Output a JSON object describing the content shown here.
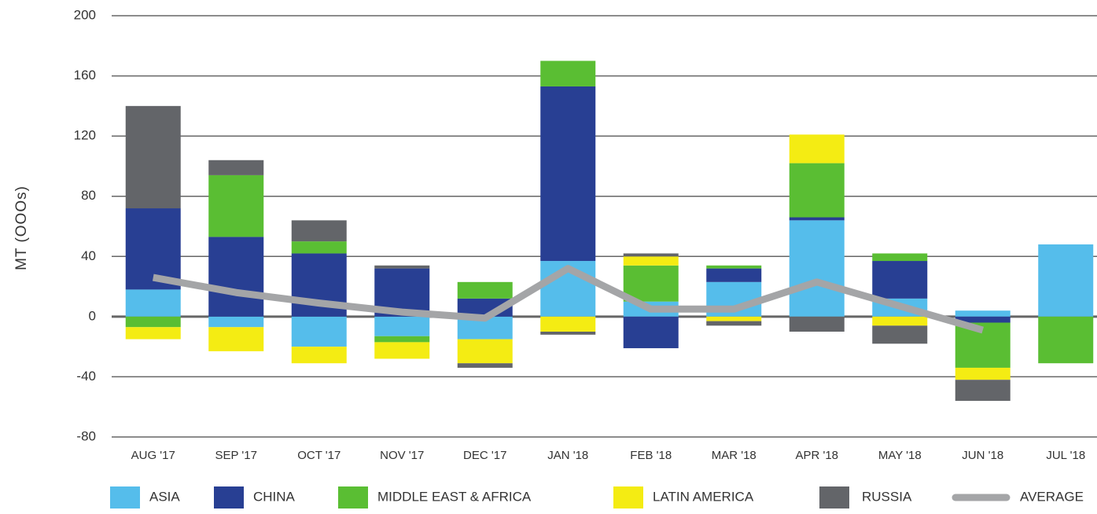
{
  "chart_data": {
    "type": "bar",
    "stacked": true,
    "y_label": "MT (OOOs)",
    "categories": [
      "AUG '17",
      "SEP '17",
      "OCT '17",
      "NOV '17",
      "DEC '17",
      "JAN '18",
      "FEB '18",
      "MAR '18",
      "APR '18",
      "MAY '18",
      "JUN '18",
      "JUL '18"
    ],
    "series": [
      {
        "name": "ASIA",
        "color": "#55bdeb",
        "values": [
          18,
          -7,
          -20,
          -13,
          -15,
          37,
          10,
          23,
          64,
          12,
          4,
          48
        ]
      },
      {
        "name": "CHINA",
        "color": "#283f93",
        "values": [
          54,
          53,
          42,
          32,
          12,
          116,
          -21,
          9,
          2,
          25,
          -4,
          0
        ]
      },
      {
        "name": "MIDDLE EAST & AFRICA",
        "color": "#5abe33",
        "values": [
          -7,
          41,
          8,
          -4,
          11,
          17,
          24,
          2,
          36,
          5,
          -30,
          -31
        ]
      },
      {
        "name": "LATIN AMERICA",
        "color": "#f4ec13",
        "values": [
          -8,
          -16,
          -11,
          -11,
          -16,
          -10,
          6,
          -3,
          19,
          -6,
          -8,
          0
        ]
      },
      {
        "name": "RUSSIA",
        "color": "#636569",
        "values": [
          68,
          10,
          14,
          2,
          -3,
          -2,
          2,
          -3,
          -10,
          -12,
          -14,
          0
        ]
      },
      {
        "name": "AVERAGE",
        "type": "line",
        "color": "#a4a5a7",
        "values": [
          26,
          16,
          9,
          3,
          -1,
          32,
          5,
          5,
          23,
          7,
          -9,
          null
        ]
      }
    ],
    "ylim": [
      -80,
      200
    ],
    "yticks": [
      -80,
      -40,
      0,
      40,
      80,
      120,
      160,
      200
    ],
    "negative_tick_color": "#e0301e",
    "grid": true,
    "legend": "bottom"
  }
}
